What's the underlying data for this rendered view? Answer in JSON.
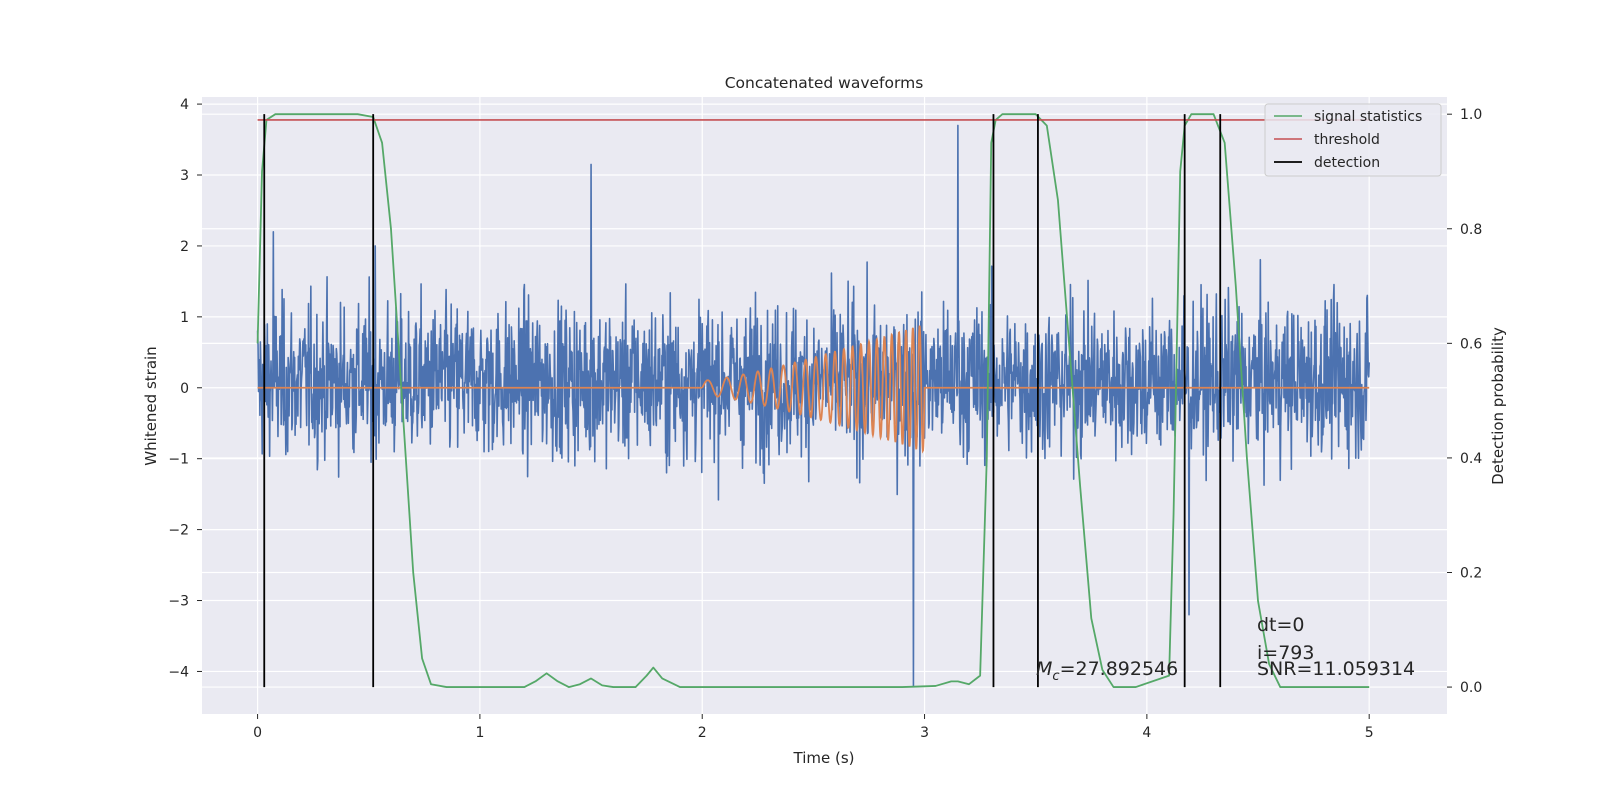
{
  "chart_data": {
    "type": "line",
    "title": "Concatenated waveforms",
    "xlabel": "Time (s)",
    "ylabel": "Whitened strain",
    "ylabel_right": "Detection probability",
    "xlim": [
      -0.25,
      5.35
    ],
    "ylim": [
      -4.6,
      4.1
    ],
    "ylim_right": [
      -0.047,
      1.03
    ],
    "xticks": [
      0,
      1,
      2,
      3,
      4,
      5
    ],
    "xtick_labels": [
      "0",
      "1",
      "2",
      "3",
      "4",
      "5"
    ],
    "yticks": [
      4,
      3,
      2,
      1,
      0,
      -1,
      -2,
      -3,
      -4
    ],
    "ytick_labels": [
      "4",
      "3",
      "2",
      "1",
      "0",
      "−1",
      "−2",
      "−3",
      "−4"
    ],
    "yticks_right": [
      1.0,
      0.8,
      0.6,
      0.4,
      0.2,
      0.0
    ],
    "ytick_labels_right": [
      "1.0",
      "0.8",
      "0.6",
      "0.4",
      "0.2",
      "0.0"
    ],
    "grid": true,
    "legend_position": "top-right",
    "colors": {
      "strain": "#4c72b0",
      "template": "#dd8452",
      "signal": "#55a868",
      "threshold": "#c44e52",
      "detection": "#000000",
      "background": "#eaeaf2",
      "grid": "#ffffff"
    },
    "series": [
      {
        "name": "",
        "axis": "left",
        "description_kind": "whitened strain noise",
        "x_range": [
          0,
          5
        ],
        "typical_amplitude": 1.5,
        "peak_values": [
          [
            0.07,
            2.2
          ],
          [
            0.53,
            2.0
          ],
          [
            1.5,
            3.15
          ],
          [
            2.95,
            -4.2
          ],
          [
            3.15,
            3.7
          ],
          [
            4.19,
            -3.2
          ]
        ]
      },
      {
        "name": "",
        "axis": "left",
        "description_kind": "chirp template",
        "x_range": [
          2,
          3
        ],
        "start_amplitude": 0.1,
        "end_amplitude": 0.9,
        "baseline": 0
      },
      {
        "name": "signal statistics",
        "axis": "right",
        "x": [
          0.0,
          0.02,
          0.04,
          0.08,
          0.15,
          0.3,
          0.45,
          0.52,
          0.56,
          0.6,
          0.65,
          0.7,
          0.74,
          0.78,
          0.85,
          1.0,
          1.2,
          1.25,
          1.3,
          1.35,
          1.4,
          1.45,
          1.5,
          1.55,
          1.6,
          1.7,
          1.75,
          1.78,
          1.82,
          1.9,
          2.0,
          2.5,
          2.9,
          3.05,
          3.12,
          3.15,
          3.2,
          3.25,
          3.28,
          3.3,
          3.32,
          3.35,
          3.4,
          3.5,
          3.55,
          3.6,
          3.65,
          3.7,
          3.75,
          3.8,
          3.85,
          3.95,
          4.1,
          4.12,
          4.15,
          4.17,
          4.2,
          4.3,
          4.35,
          4.4,
          4.45,
          4.5,
          4.55,
          4.6,
          4.7,
          5.0
        ],
        "values": [
          0.6,
          0.9,
          0.99,
          1.0,
          1.0,
          1.0,
          1.0,
          0.995,
          0.95,
          0.8,
          0.5,
          0.2,
          0.05,
          0.005,
          0.0,
          0.0,
          0.0,
          0.01,
          0.024,
          0.01,
          0.0,
          0.005,
          0.015,
          0.003,
          0.0,
          0.0,
          0.02,
          0.034,
          0.015,
          0.0,
          0.0,
          0.0,
          0.0,
          0.002,
          0.01,
          0.01,
          0.005,
          0.02,
          0.4,
          0.95,
          0.99,
          1.0,
          1.0,
          1.0,
          0.98,
          0.85,
          0.6,
          0.35,
          0.12,
          0.03,
          0.0,
          0.0,
          0.02,
          0.3,
          0.9,
          0.98,
          1.0,
          1.0,
          0.95,
          0.7,
          0.4,
          0.15,
          0.04,
          0.0,
          0.0,
          0.0
        ]
      },
      {
        "name": "threshold",
        "axis": "right",
        "x": [
          0,
          5
        ],
        "values": [
          0.99,
          0.99
        ]
      },
      {
        "name": "detection",
        "axis": "right",
        "vlines_x": [
          0.03,
          0.52,
          3.31,
          3.51,
          4.17,
          4.33
        ],
        "y_range": [
          0.0,
          1.0
        ]
      }
    ],
    "annotations": {
      "mc_symbol": "M",
      "mc_subscript": "c",
      "mc_value": "=27.892546",
      "dt": "dt=0",
      "i": "i=793",
      "snr": "SNR=11.059314"
    }
  }
}
